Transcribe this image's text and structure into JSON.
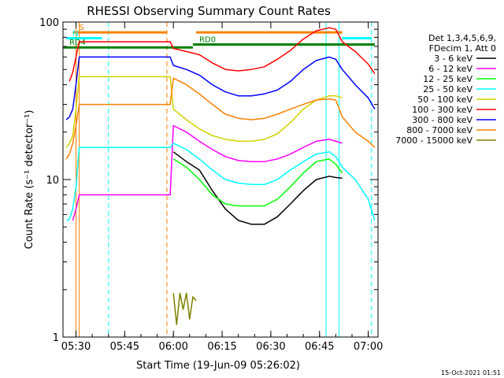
{
  "chart_data": {
    "type": "line",
    "title": "RHESSI Observing Summary Count Rates",
    "xlabel": "Start Time (19-Jun-09 05:26:02)",
    "ylabel": "Count Rate (s⁻¹ detector⁻¹)",
    "y_scale": "log",
    "ylim": [
      1,
      100
    ],
    "xlim": [
      "05:26",
      "07:03"
    ],
    "x_ticks": [
      "05:30",
      "05:45",
      "06:00",
      "06:15",
      "06:30",
      "06:45",
      "07:00"
    ],
    "y_ticks": [
      "1",
      "10",
      "100"
    ],
    "legend_header": [
      "Det 1,3,4,5,6,9,",
      "FDecim 1, Att 0"
    ],
    "legend_placement": "right",
    "timestamp": "15-Oct-2021 01:51",
    "series": [
      {
        "name": "3 - 6 keV",
        "color": "#000000",
        "x": [
          "06:00",
          "06:04",
          "06:08",
          "06:12",
          "06:16",
          "06:20",
          "06:24",
          "06:28",
          "06:32",
          "06:36",
          "06:40",
          "06:44",
          "06:48",
          "06:50",
          "06:52"
        ],
        "y": [
          15,
          13,
          11.5,
          8.5,
          6.5,
          5.5,
          5.2,
          5.2,
          5.8,
          7,
          8.5,
          10,
          10.5,
          10.3,
          10.2
        ]
      },
      {
        "name": "6 - 12 keV",
        "color": "#ff00ff",
        "x": [
          "05:29",
          "05:30",
          "05:31",
          "05:59",
          "06:00",
          "06:04",
          "06:08",
          "06:12",
          "06:16",
          "06:20",
          "06:24",
          "06:28",
          "06:32",
          "06:36",
          "06:40",
          "06:44",
          "06:48",
          "06:50",
          "06:52"
        ],
        "y": [
          5.5,
          6.5,
          8,
          8,
          22,
          20,
          17.5,
          15.5,
          14,
          13.2,
          13,
          13,
          13.5,
          14.5,
          16,
          17.5,
          18,
          17.5,
          17
        ]
      },
      {
        "name": "12 - 25 keV",
        "color": "#00ff00",
        "x": [
          "06:00",
          "06:04",
          "06:08",
          "06:12",
          "06:16",
          "06:20",
          "06:24",
          "06:28",
          "06:32",
          "06:36",
          "06:40",
          "06:44",
          "06:48",
          "06:50",
          "06:52"
        ],
        "y": [
          13.5,
          12,
          10,
          8,
          7,
          6.8,
          6.8,
          6.8,
          7.5,
          9,
          11,
          13,
          13.5,
          12.5,
          11
        ]
      },
      {
        "name": "25 - 50 keV",
        "color": "#00ffff",
        "x": [
          "05:27",
          "05:28",
          "05:29",
          "05:30",
          "05:31",
          "05:59",
          "06:00",
          "06:04",
          "06:08",
          "06:12",
          "06:16",
          "06:20",
          "06:24",
          "06:28",
          "06:32",
          "06:36",
          "06:40",
          "06:44",
          "06:48",
          "06:50",
          "06:52",
          "06:56",
          "07:00",
          "07:02"
        ],
        "y": [
          5.5,
          5.6,
          6.5,
          9,
          16,
          16,
          17,
          15.5,
          13.5,
          11.5,
          10,
          9.5,
          9.3,
          9.3,
          10,
          11.5,
          13,
          14.5,
          15,
          14,
          12,
          10,
          7.5,
          5.5
        ]
      },
      {
        "name": "50 - 100 keV",
        "color": "#d2d200",
        "x": [
          "05:27",
          "05:28",
          "05:29",
          "05:30",
          "05:31",
          "05:59",
          "06:00",
          "06:04",
          "06:08",
          "06:12",
          "06:16",
          "06:20",
          "06:24",
          "06:28",
          "06:32",
          "06:36",
          "06:40",
          "06:44",
          "06:48",
          "06:50",
          "06:52"
        ],
        "y": [
          16,
          17,
          19,
          28,
          45,
          45,
          28,
          24,
          21,
          19,
          18,
          17.5,
          17.5,
          18,
          19.5,
          23,
          28,
          32,
          34,
          34,
          33
        ]
      },
      {
        "name": "100 - 300 keV",
        "color": "#ff0000",
        "x": [
          "05:28",
          "05:29",
          "05:30",
          "05:31",
          "05:59",
          "06:00",
          "06:04",
          "06:08",
          "06:12",
          "06:16",
          "06:20",
          "06:24",
          "06:28",
          "06:32",
          "06:36",
          "06:40",
          "06:44",
          "06:48",
          "06:50",
          "06:52",
          "06:56",
          "07:00",
          "07:02"
        ],
        "y": [
          42,
          48,
          60,
          75,
          75,
          68,
          65,
          62,
          55,
          50,
          49,
          50,
          52,
          58,
          66,
          78,
          88,
          92,
          90,
          75,
          65,
          54,
          47
        ]
      },
      {
        "name": "300 - 800 keV",
        "color": "#0000ff",
        "x": [
          "05:27",
          "05:28",
          "05:29",
          "05:30",
          "05:31",
          "05:59",
          "06:00",
          "06:04",
          "06:08",
          "06:12",
          "06:16",
          "06:20",
          "06:24",
          "06:28",
          "06:32",
          "06:36",
          "06:40",
          "06:44",
          "06:48",
          "06:50",
          "06:52",
          "06:56",
          "07:00",
          "07:02"
        ],
        "y": [
          24,
          25,
          28,
          40,
          60,
          60,
          53,
          50,
          46,
          40,
          36,
          34,
          34,
          35,
          37,
          42,
          50,
          57,
          60,
          58,
          50,
          40,
          33,
          28
        ]
      },
      {
        "name": "800 - 7000 keV",
        "color": "#ff8000",
        "x": [
          "05:27",
          "05:28",
          "05:29",
          "05:30",
          "05:31",
          "05:59",
          "06:00",
          "06:04",
          "06:08",
          "06:12",
          "06:16",
          "06:20",
          "06:24",
          "06:28",
          "06:32",
          "06:36",
          "06:40",
          "06:44",
          "06:48",
          "06:50",
          "06:52",
          "06:56",
          "07:00",
          "07:02"
        ],
        "y": [
          13.5,
          14.5,
          17,
          22,
          30,
          30,
          44,
          40,
          35,
          30,
          26,
          24.5,
          24,
          24.5,
          26,
          28,
          30,
          32,
          32.5,
          32,
          25,
          20,
          17.5,
          16
        ]
      },
      {
        "name": "7000 - 15000 keV",
        "color": "#808000",
        "x": [
          "06:00",
          "06:01",
          "06:02",
          "06:03",
          "06:04",
          "06:05",
          "06:06",
          "06:07"
        ],
        "y": [
          1.9,
          1.2,
          1.9,
          1.5,
          1.9,
          1.3,
          1.8,
          1.7
        ]
      }
    ],
    "overlays": [
      {
        "label": "S",
        "color": "#ff8000",
        "x_start": "05:29",
        "x_end": "05:58",
        "y": 86
      },
      {
        "label": "N",
        "color": "#00ffff",
        "x_start": "05:27",
        "x_end": "05:38",
        "y": 79
      },
      {
        "label": "RD4",
        "color": "#008000",
        "x_start": "05:26",
        "x_end": "06:06",
        "y": 69
      },
      {
        "label": "RD0",
        "color": "#008000",
        "x_start": "06:06",
        "x_end": "07:02",
        "y": 72
      },
      {
        "label": "",
        "color": "#ff8000",
        "x_start": "06:07",
        "x_end": "06:52",
        "y": 86
      },
      {
        "label": "",
        "color": "#00ffff",
        "x_start": "06:52",
        "x_end": "07:01",
        "y": 79
      }
    ],
    "vlines": [
      {
        "x": "05:30",
        "color": "#ff8000",
        "style": "solid"
      },
      {
        "x": "05:31",
        "color": "#ff8000",
        "style": "solid"
      },
      {
        "x": "05:40",
        "color": "#00ffff",
        "style": "dashed"
      },
      {
        "x": "05:58",
        "color": "#ff8000",
        "style": "dashed"
      },
      {
        "x": "06:47",
        "color": "#00ffff",
        "style": "solid"
      },
      {
        "x": "06:51",
        "color": "#00ffff",
        "style": "solid"
      },
      {
        "x": "07:01",
        "color": "#00ffff",
        "style": "dashed"
      }
    ]
  }
}
